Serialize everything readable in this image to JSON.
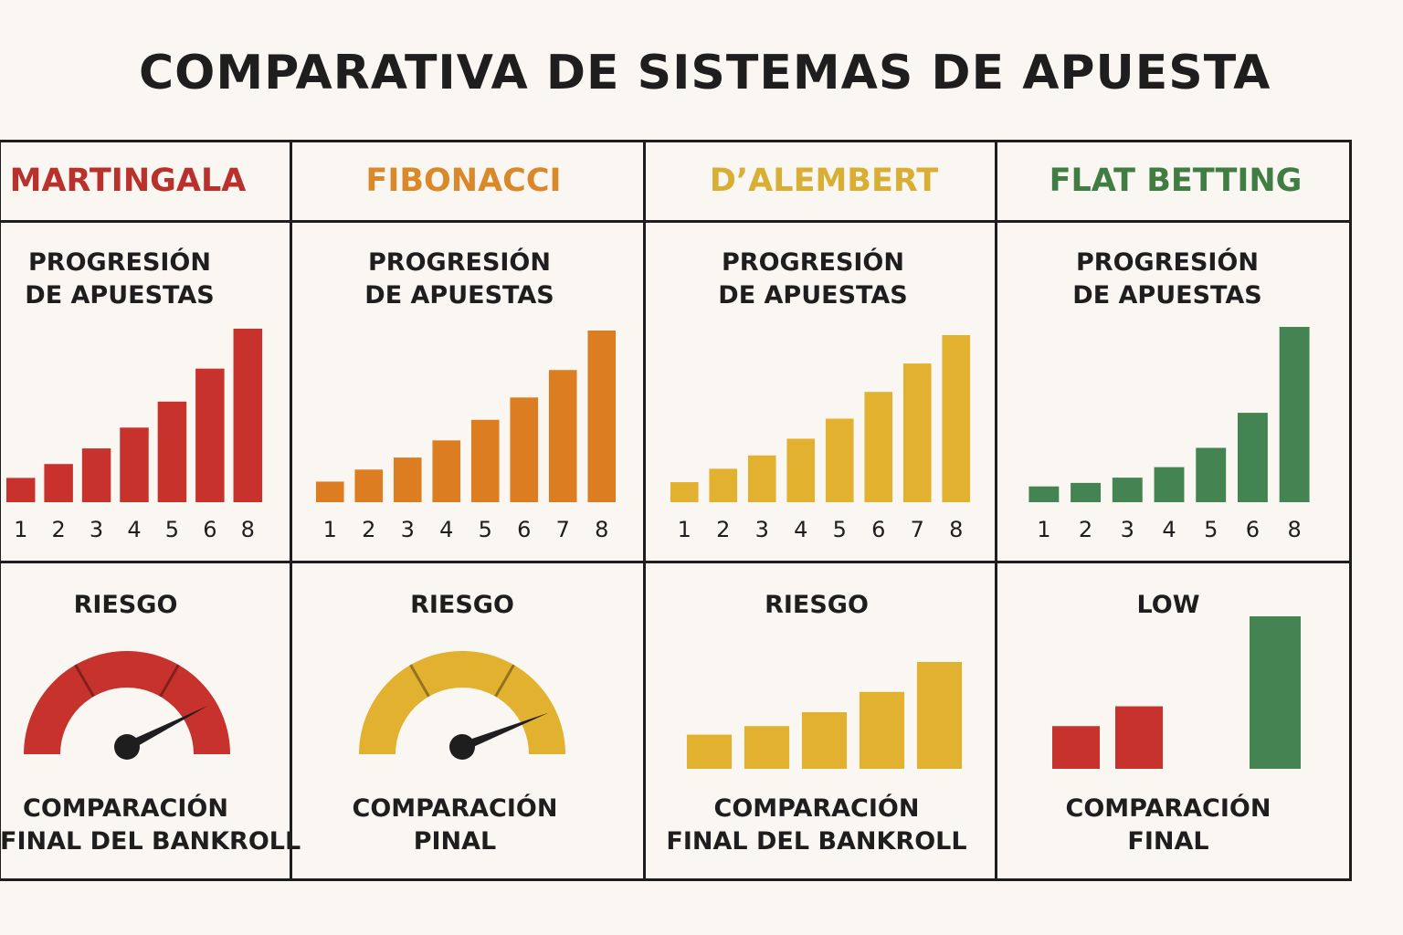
{
  "title": "COMPARATIVA DE SISTEMAS DE APUESTA",
  "colors": {
    "red": "#c8322c",
    "orange": "#dd7d22",
    "yellow": "#e2b12f",
    "green": "#448452"
  },
  "columns": [
    {
      "name": "MARTINGALA",
      "name_color": "#b8312c",
      "progression_label": [
        "PROGRESIÓN",
        "DE APUESTAS"
      ],
      "risk_label": "RIESGO",
      "final_label": [
        "COMPARACIÓN",
        "FINAL DEL BANKROLL"
      ]
    },
    {
      "name": "FIBONACCI",
      "name_color": "#d9892a",
      "progression_label": [
        "PROGRESIÓN",
        "DE APUESTAS"
      ],
      "risk_label": "RIESGO",
      "final_label": [
        "COMPARACIÓN",
        "PINAL"
      ]
    },
    {
      "name": "D’ALEMBERT",
      "name_color": "#d8ae35",
      "progression_label": [
        "PROGRESIÓN",
        "DE APUESTAS"
      ],
      "risk_label": "RIESGO",
      "final_label": [
        "COMPARACIÓN",
        "FINAL DEL BANKROLL"
      ]
    },
    {
      "name": "FLAT BETTING",
      "name_color": "#3f7d43",
      "progression_label": [
        "PROGRESIÓN",
        "DE APUESTAS"
      ],
      "risk_label": "LOW",
      "final_label": [
        "COMPARACIÓN",
        "FINAL"
      ]
    }
  ],
  "chart_data": [
    {
      "type": "bar",
      "name": "martingala-progression",
      "categories": [
        "1",
        "2",
        "3",
        "4",
        "5",
        "6",
        "8"
      ],
      "values": [
        1.4,
        2.2,
        3.1,
        4.3,
        5.8,
        7.7,
        10.0
      ],
      "ylim": [
        0,
        10
      ],
      "color": "#c8322c"
    },
    {
      "type": "bar",
      "name": "fibonacci-progression",
      "categories": [
        "1",
        "2",
        "3",
        "4",
        "5",
        "6",
        "7",
        "8"
      ],
      "values": [
        1.2,
        1.9,
        2.6,
        3.6,
        4.8,
        6.1,
        7.7,
        10.0
      ],
      "ylim": [
        0,
        10
      ],
      "color": "#dd7d22"
    },
    {
      "type": "bar",
      "name": "dalembert-progression",
      "categories": [
        "1",
        "2",
        "3",
        "4",
        "5",
        "6",
        "7",
        "8"
      ],
      "values": [
        1.2,
        2.0,
        2.8,
        3.8,
        5.0,
        6.6,
        8.3,
        10.0
      ],
      "ylim": [
        0,
        10
      ],
      "color": "#e2b12f"
    },
    {
      "type": "bar",
      "name": "flat-betting-progression",
      "categories": [
        "1",
        "2",
        "3",
        "4",
        "5",
        "6",
        "8"
      ],
      "values": [
        0.9,
        1.1,
        1.4,
        2.0,
        3.1,
        5.1,
        10.0
      ],
      "ylim": [
        0,
        10
      ],
      "color": "#448452"
    },
    {
      "type": "gauge",
      "name": "martingala-risk",
      "value": 0.85,
      "range": [
        0,
        1
      ],
      "color": "#c8322c"
    },
    {
      "type": "gauge",
      "name": "fibonacci-risk",
      "value": 0.88,
      "range": [
        0,
        1
      ],
      "color": "#e2b12f"
    },
    {
      "type": "bar",
      "name": "dalembert-final-bankroll",
      "values": [
        3.2,
        4.0,
        5.3,
        7.2,
        10.0
      ],
      "ylim": [
        0,
        10
      ],
      "color": "#e2b12f"
    },
    {
      "type": "bar",
      "name": "flat-betting-final",
      "values": [
        2.8,
        4.1,
        10.0
      ],
      "ylim": [
        0,
        10
      ],
      "colors": [
        "#c8322c",
        "#c8322c",
        "#448452"
      ]
    }
  ]
}
